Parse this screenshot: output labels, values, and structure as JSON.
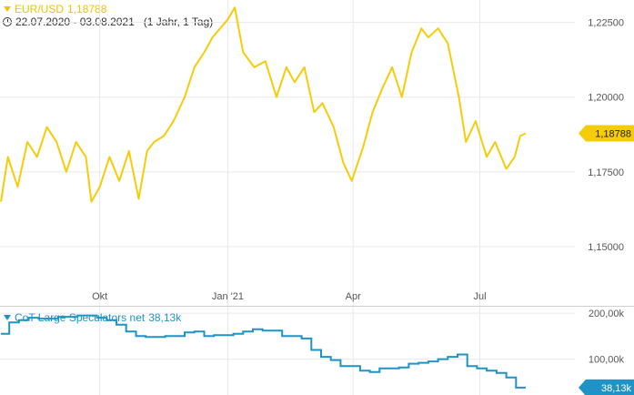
{
  "legend_main": {
    "symbol": "EUR/USD",
    "value": "1,18788",
    "color": "#f2c300"
  },
  "date_range": {
    "text": "22.07.2020 - 03.08.2021",
    "interval": "(1 Jahr, 1 Tag)"
  },
  "legend_sub": {
    "name": "CoT Large Speculators net",
    "value": "38,13k",
    "color": "#1f93c5"
  },
  "colors": {
    "price_line": "#f5cc0a",
    "price_tag": "#f5cc0a",
    "cot_line": "#1f93c5",
    "cot_tag": "#1f93c5",
    "grid": "#e9e9e9"
  },
  "chart_data": [
    {
      "type": "line",
      "name": "EUR/USD",
      "title": "",
      "ylim": [
        1.1375,
        1.2325
      ],
      "y_ticks": [
        "1,22500",
        "1,20000",
        "1,17500",
        "1,15000"
      ],
      "y_tick_values": [
        1.225,
        1.2,
        1.175,
        1.15
      ],
      "x_ticks": [
        "Okt",
        "Jan '21",
        "Apr",
        "Jul"
      ],
      "x_tick_dates": [
        "2020-10-01",
        "2021-01-01",
        "2021-04-01",
        "2021-07-01"
      ],
      "x_range": [
        "2020-07-22",
        "2021-08-03"
      ],
      "last_value_label": "1,18788",
      "grid": true,
      "series": [
        {
          "name": "EUR/USD",
          "x": [
            "2020-07-22",
            "2020-07-27",
            "2020-08-03",
            "2020-08-10",
            "2020-08-17",
            "2020-08-24",
            "2020-08-31",
            "2020-09-07",
            "2020-09-14",
            "2020-09-21",
            "2020-09-25",
            "2020-10-01",
            "2020-10-08",
            "2020-10-15",
            "2020-10-22",
            "2020-10-29",
            "2020-11-04",
            "2020-11-09",
            "2020-11-16",
            "2020-11-23",
            "2020-12-01",
            "2020-12-08",
            "2020-12-15",
            "2020-12-21",
            "2021-01-01",
            "2021-01-06",
            "2021-01-12",
            "2021-01-20",
            "2021-01-28",
            "2021-02-05",
            "2021-02-12",
            "2021-02-18",
            "2021-02-25",
            "2021-03-04",
            "2021-03-10",
            "2021-03-18",
            "2021-03-25",
            "2021-03-31",
            "2021-04-08",
            "2021-04-15",
            "2021-04-22",
            "2021-04-29",
            "2021-05-06",
            "2021-05-13",
            "2021-05-20",
            "2021-05-25",
            "2021-06-01",
            "2021-06-08",
            "2021-06-16",
            "2021-06-21",
            "2021-06-28",
            "2021-07-06",
            "2021-07-12",
            "2021-07-20",
            "2021-07-26",
            "2021-07-30",
            "2021-08-03"
          ],
          "y": [
            1.165,
            1.18,
            1.17,
            1.185,
            1.18,
            1.19,
            1.185,
            1.175,
            1.185,
            1.18,
            1.165,
            1.17,
            1.18,
            1.172,
            1.182,
            1.166,
            1.182,
            1.185,
            1.187,
            1.192,
            1.2,
            1.21,
            1.215,
            1.22,
            1.226,
            1.23,
            1.215,
            1.21,
            1.212,
            1.2,
            1.21,
            1.205,
            1.21,
            1.195,
            1.198,
            1.19,
            1.178,
            1.172,
            1.183,
            1.195,
            1.203,
            1.21,
            1.2,
            1.215,
            1.223,
            1.22,
            1.223,
            1.218,
            1.2,
            1.185,
            1.192,
            1.18,
            1.185,
            1.176,
            1.18,
            1.187,
            1.18788
          ]
        }
      ]
    },
    {
      "type": "line",
      "name": "CoT Large Speculators net",
      "title": "",
      "ylim": [
        22000,
        214000
      ],
      "y_ticks": [
        "200,00k",
        "100,00k"
      ],
      "y_tick_values": [
        200000,
        100000
      ],
      "last_value_label": "38,13k",
      "grid": true,
      "series": [
        {
          "name": "CoT Large Speculators net",
          "x": [
            "2020-07-22",
            "2020-07-28",
            "2020-08-04",
            "2020-08-11",
            "2020-08-18",
            "2020-09-01",
            "2020-09-15",
            "2020-09-29",
            "2020-10-06",
            "2020-10-13",
            "2020-10-20",
            "2020-10-27",
            "2020-11-03",
            "2020-11-17",
            "2020-12-01",
            "2020-12-08",
            "2020-12-15",
            "2020-12-22",
            "2021-01-05",
            "2021-01-12",
            "2021-01-19",
            "2021-01-26",
            "2021-02-09",
            "2021-02-23",
            "2021-03-02",
            "2021-03-09",
            "2021-03-16",
            "2021-03-23",
            "2021-04-06",
            "2021-04-13",
            "2021-04-20",
            "2021-05-04",
            "2021-05-11",
            "2021-05-18",
            "2021-05-25",
            "2021-06-01",
            "2021-06-08",
            "2021-06-15",
            "2021-06-22",
            "2021-06-29",
            "2021-07-06",
            "2021-07-13",
            "2021-07-20",
            "2021-07-27"
          ],
          "y": [
            155000,
            180000,
            185000,
            190000,
            188000,
            192000,
            195000,
            190000,
            185000,
            175000,
            160000,
            150000,
            148000,
            150000,
            158000,
            160000,
            150000,
            152000,
            155000,
            160000,
            165000,
            162000,
            150000,
            145000,
            120000,
            105000,
            98000,
            85000,
            75000,
            72000,
            80000,
            82000,
            90000,
            92000,
            95000,
            100000,
            105000,
            110000,
            85000,
            80000,
            75000,
            70000,
            60000,
            38130
          ]
        }
      ]
    }
  ]
}
